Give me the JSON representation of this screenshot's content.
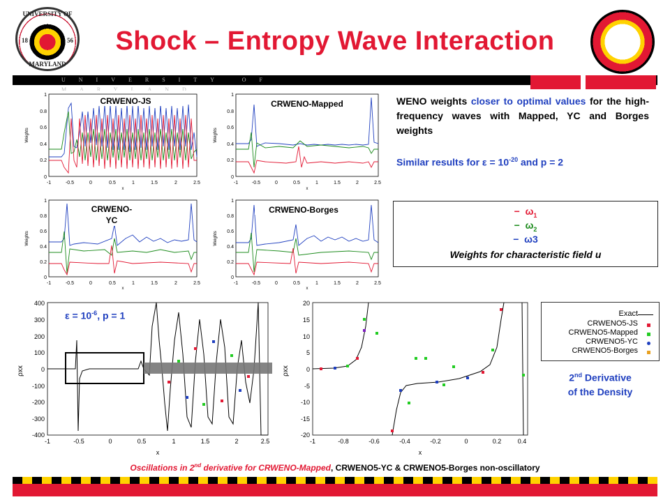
{
  "header": {
    "title": "Shock – Entropy Wave Interaction",
    "banner_text": "UNIVERSITY OF MARYLAND",
    "umd_seal": {
      "top": "UNIVERSITY OF",
      "bottom": "MARYLAND",
      "left_year": "18",
      "right_year": "56"
    }
  },
  "weights_plots": {
    "panels": [
      {
        "label": "CRWENO-JS"
      },
      {
        "label": "CRWENO-Mapped"
      },
      {
        "label_line1": "CRWENO-",
        "label_line2": "YC"
      },
      {
        "label": "CRWENO-Borges"
      }
    ],
    "y_ticks": [
      "1",
      "0.8",
      "0.6",
      "0.4",
      "0.2",
      "0"
    ],
    "x_ticks": [
      "-1",
      "-0.5",
      "0",
      "0.5",
      "1",
      "1.5",
      "2",
      "2.5"
    ],
    "y_axis_label": "Weights",
    "x_axis_label": "x",
    "colors": {
      "omega1": "#e21833",
      "omega2": "#1a8a1a",
      "omega3": "#1f3fbf"
    }
  },
  "text_block": {
    "line1_part1": "WENO weights ",
    "line1_highlight": "closer to optimal values",
    "line1_part2": " for the high-frequency waves with Mapped, YC and Borges weights",
    "line2_part1": "Similar results for ε = 10",
    "line2_exp": "-20",
    "line2_part2": " and p = 2"
  },
  "weights_legend": {
    "omega1": "ω",
    "omega1_sub": "1",
    "omega2": "ω",
    "omega2_sub": "2",
    "omega3": "ω3",
    "dash": "−",
    "caption": "Weights for characteristic field u"
  },
  "rho_plot_left": {
    "annotation_part1": "ε = 10",
    "annotation_exp": "-6",
    "annotation_part2": ", p = 1",
    "y_ticks": [
      "400",
      "300",
      "200",
      "100",
      "0",
      "-100",
      "-200",
      "-300",
      "-400"
    ],
    "x_ticks": [
      "-1",
      "-0.5",
      "0",
      "0.5",
      "1",
      "1.5",
      "2",
      "2.5"
    ],
    "y_axis_label": "ρxx",
    "x_axis_label": "x"
  },
  "rho_plot_right": {
    "y_ticks": [
      "20",
      "15",
      "10",
      "5",
      "0",
      "-5",
      "-10",
      "-15",
      "-20"
    ],
    "x_ticks": [
      "-1",
      "-0.8",
      "-0.6",
      "-0.4",
      "-0.2",
      "0",
      "0.2",
      "0.4"
    ],
    "y_axis_label": "ρxx",
    "x_axis_label": "x"
  },
  "rho_legend": {
    "items": [
      {
        "label": "Exact",
        "color": "#000000"
      },
      {
        "label": "CRWENO5-JS",
        "color": "#e21833"
      },
      {
        "label": "CRWENO5-Mapped",
        "color": "#22cc22"
      },
      {
        "label": "CRWENO5-YC",
        "color": "#1f3fbf"
      },
      {
        "label": "CRWENO5-Borges",
        "color": "#e8a020"
      }
    ]
  },
  "derivative_label": {
    "line1_part1": "2",
    "line1_sup": "nd",
    "line1_part2": " Derivative",
    "line2": "of the Density"
  },
  "footer": {
    "part1": "Oscillations in 2",
    "part1_sup": "nd",
    "part1_b": " derivative for CRWENO-Mapped",
    "part2": ", CRWENO5-YC & CRWENO5-Borges non-oscillatory"
  }
}
